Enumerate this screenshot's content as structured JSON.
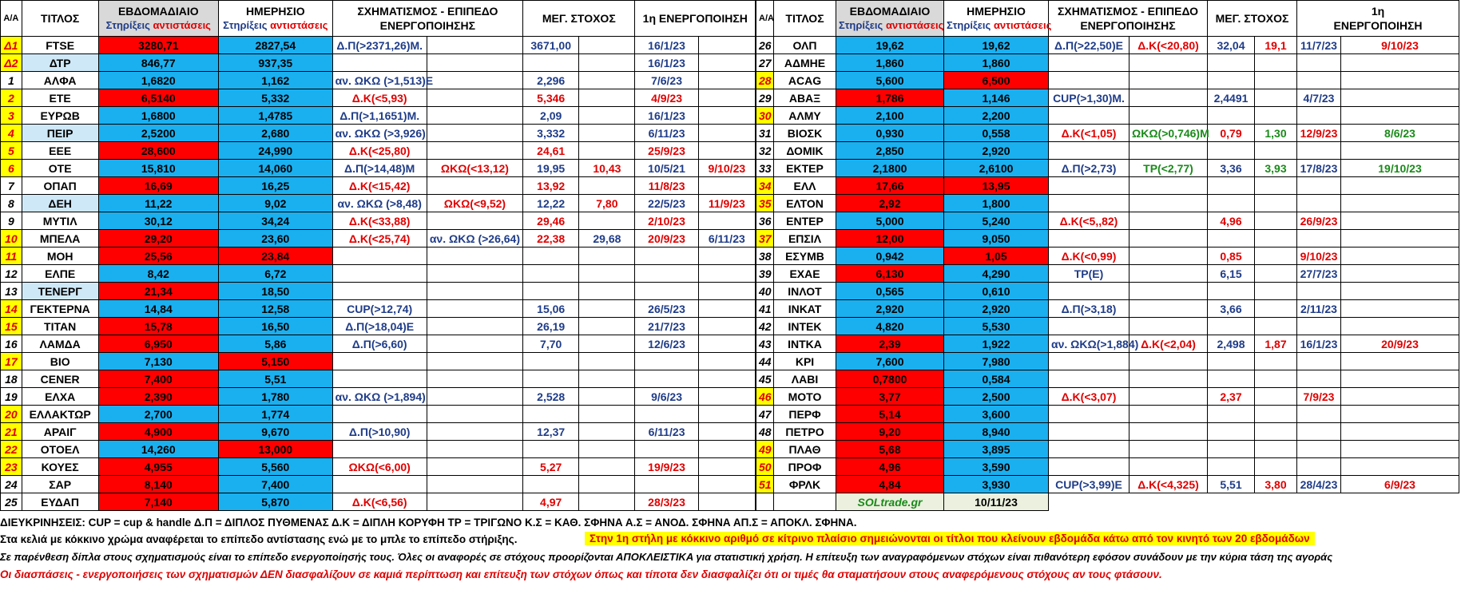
{
  "headers": {
    "aa": "Α/Α",
    "title": "ΤΙΤΛΟΣ",
    "weekly": "ΕΒΔΟΜΑΔΙΑΙΟ",
    "daily": "ΗΜΕΡΗΣΙΟ",
    "supports": "Στηρίξεις",
    "resistances": "αντιστάσεις",
    "pattern_line1": "ΣΧΗΜΑΤΙΣΜΟΣ - ΕΠΙΠΕΔΟ",
    "pattern_line2": "ΕΝΕΡΓΟΠΟΙΗΣΗΣ",
    "target": "ΜΕΓ. ΣΤΟΧΟΣ",
    "first_activation": "1η ΕΝΕΡΓΟΠΟΙΗΣΗ",
    "first_line1": "1η",
    "first_line2": "ΕΝΕΡΓΟΠΟΙΗΣΗ"
  },
  "colors": {
    "red": "#ff0000",
    "blue": "#1ab0f0",
    "yellow": "#ffff00",
    "light_blue": "#cfe8f8",
    "text_red": "#e00000",
    "text_green": "#1a8a1a",
    "text_blue": "#1f3c88"
  },
  "left_rows": [
    {
      "aa": "Δ1",
      "title": "FTSE",
      "weekly": "3280,71",
      "daily": "2827,54",
      "p1": "Δ.Π(>2371,26)Μ.",
      "p2": "",
      "t1": "3671,00",
      "t2": "",
      "d1": "16/1/23",
      "d2": ""
    },
    {
      "aa": "Δ2",
      "title": "ΔΤΡ",
      "weekly": "846,77",
      "daily": "937,35",
      "p1": "",
      "p2": "",
      "t1": "",
      "t2": "",
      "d1": "16/1/23",
      "d2": ""
    },
    {
      "aa": "1",
      "title": "ΑΛΦΑ",
      "weekly": "1,6820",
      "daily": "1,162",
      "p1": "αν. ΩΚΩ (>1,513)Ε",
      "p2": "",
      "t1": "2,296",
      "t2": "",
      "d1": "7/6/23",
      "d2": ""
    },
    {
      "aa": "2",
      "title": "ΕΤΕ",
      "weekly": "6,5140",
      "daily": "5,332",
      "p1": "Δ.Κ(<5,93)",
      "p2": "",
      "t1": "5,346",
      "t2": "",
      "d1": "4/9/23",
      "d2": ""
    },
    {
      "aa": "3",
      "title": "ΕΥΡΩΒ",
      "weekly": "1,6800",
      "daily": "1,4785",
      "p1": "Δ.Π(>1,1651)Μ.",
      "p2": "",
      "t1": "2,09",
      "t2": "",
      "d1": "16/1/23",
      "d2": ""
    },
    {
      "aa": "4",
      "title": "ΠΕΙΡ",
      "weekly": "2,5200",
      "daily": "2,680",
      "p1": "αν. ΩΚΩ (>3,926)",
      "p2": "",
      "t1": "3,332",
      "t2": "",
      "d1": "6/11/23",
      "d2": ""
    },
    {
      "aa": "5",
      "title": "ΕΕΕ",
      "weekly": "28,600",
      "daily": "24,990",
      "p1": "Δ.Κ(<25,80)",
      "p2": "",
      "t1": "24,61",
      "t2": "",
      "d1": "25/9/23",
      "d2": ""
    },
    {
      "aa": "6",
      "title": "ΟΤΕ",
      "weekly": "15,810",
      "daily": "14,060",
      "p1": "Δ.Π(>14,48)Μ",
      "p2": "ΩΚΩ(<13,12)",
      "t1": "19,95",
      "t2": "10,43",
      "d1": "10/5/21",
      "d2": "9/10/23"
    },
    {
      "aa": "7",
      "title": "ΟΠΑΠ",
      "weekly": "16,69",
      "daily": "16,25",
      "p1": "Δ.Κ(<15,42)",
      "p2": "",
      "t1": "13,92",
      "t2": "",
      "d1": "11/8/23",
      "d2": ""
    },
    {
      "aa": "8",
      "title": "ΔΕΗ",
      "weekly": "11,22",
      "daily": "9,02",
      "p1": "αν. ΩΚΩ (>8,48)",
      "p2": "ΩΚΩ(<9,52)",
      "t1": "12,22",
      "t2": "7,80",
      "d1": "22/5/23",
      "d2": "11/9/23"
    },
    {
      "aa": "9",
      "title": "ΜΥΤΙΛ",
      "weekly": "30,12",
      "daily": "34,24",
      "p1": "Δ.Κ(<33,88)",
      "p2": "",
      "t1": "29,46",
      "t2": "",
      "d1": "2/10/23",
      "d2": ""
    },
    {
      "aa": "10",
      "title": "ΜΠΕΛΑ",
      "weekly": "29,20",
      "daily": "23,60",
      "p1": "Δ.Κ(<25,74)",
      "p2": "αν. ΩΚΩ (>26,64)",
      "t1": "22,38",
      "t2": "29,68",
      "d1": "20/9/23",
      "d2": "6/11/23"
    },
    {
      "aa": "11",
      "title": "ΜΟΗ",
      "weekly": "25,56",
      "daily": "23,84",
      "p1": "",
      "p2": "",
      "t1": "",
      "t2": "",
      "d1": "",
      "d2": ""
    },
    {
      "aa": "12",
      "title": "ΕΛΠΕ",
      "weekly": "8,42",
      "daily": "6,72",
      "p1": "",
      "p2": "",
      "t1": "",
      "t2": "",
      "d1": "",
      "d2": ""
    },
    {
      "aa": "13",
      "title": "ΤΕΝΕΡΓ",
      "weekly": "21,34",
      "daily": "18,50",
      "p1": "",
      "p2": "",
      "t1": "",
      "t2": "",
      "d1": "",
      "d2": ""
    },
    {
      "aa": "14",
      "title": "ΓΕΚΤΕΡΝΑ",
      "weekly": "14,84",
      "daily": "12,58",
      "p1": "CUP(>12,74)",
      "p2": "",
      "t1": "15,06",
      "t2": "",
      "d1": "26/5/23",
      "d2": ""
    },
    {
      "aa": "15",
      "title": "ΤΙΤΑΝ",
      "weekly": "15,78",
      "daily": "16,50",
      "p1": "Δ.Π(>18,04)Ε",
      "p2": "",
      "t1": "26,19",
      "t2": "",
      "d1": "21/7/23",
      "d2": ""
    },
    {
      "aa": "16",
      "title": "ΛΑΜΔΑ",
      "weekly": "6,950",
      "daily": "5,86",
      "p1": "Δ.Π(>6,60)",
      "p2": "",
      "t1": "7,70",
      "t2": "",
      "d1": "12/6/23",
      "d2": ""
    },
    {
      "aa": "17",
      "title": "ΒΙΟ",
      "weekly": "7,130",
      "daily": "5,150",
      "p1": "",
      "p2": "",
      "t1": "",
      "t2": "",
      "d1": "",
      "d2": ""
    },
    {
      "aa": "18",
      "title": "CENER",
      "weekly": "7,400",
      "daily": "5,51",
      "p1": "",
      "p2": "",
      "t1": "",
      "t2": "",
      "d1": "",
      "d2": ""
    },
    {
      "aa": "19",
      "title": "ΕΛΧΑ",
      "weekly": "2,390",
      "daily": "1,780",
      "p1": "αν. ΩΚΩ (>1,894)",
      "p2": "",
      "t1": "2,528",
      "t2": "",
      "d1": "9/6/23",
      "d2": ""
    },
    {
      "aa": "20",
      "title": "ΕΛΛΑΚΤΩΡ",
      "weekly": "2,700",
      "daily": "1,774",
      "p1": "",
      "p2": "",
      "t1": "",
      "t2": "",
      "d1": "",
      "d2": ""
    },
    {
      "aa": "21",
      "title": "ΑΡΑΙΓ",
      "weekly": "4,900",
      "daily": "9,670",
      "p1": "Δ.Π(>10,90)",
      "p2": "",
      "t1": "12,37",
      "t2": "",
      "d1": "6/11/23",
      "d2": ""
    },
    {
      "aa": "22",
      "title": "ΟΤΟΕΛ",
      "weekly": "14,260",
      "daily": "13,000",
      "p1": "",
      "p2": "",
      "t1": "",
      "t2": "",
      "d1": "",
      "d2": ""
    },
    {
      "aa": "23",
      "title": "ΚΟΥΕΣ",
      "weekly": "4,955",
      "daily": "5,560",
      "p1": "ΩΚΩ(<6,00)",
      "p2": "",
      "t1": "5,27",
      "t2": "",
      "d1": "19/9/23",
      "d2": ""
    },
    {
      "aa": "24",
      "title": "ΣΑΡ",
      "weekly": "8,140",
      "daily": "7,400",
      "p1": "",
      "p2": "",
      "t1": "",
      "t2": "",
      "d1": "",
      "d2": ""
    },
    {
      "aa": "25",
      "title": "ΕΥΔΑΠ",
      "weekly": "7,140",
      "daily": "5,870",
      "p1": "Δ.Κ(<6,56)",
      "p2": "",
      "t1": "4,97",
      "t2": "",
      "d1": "28/3/23",
      "d2": ""
    }
  ],
  "right_rows": [
    {
      "aa": "26",
      "title": "ΟΛΠ",
      "weekly": "19,62",
      "daily": "19,62",
      "p1": "Δ.Π(>22,50)Ε",
      "p2": "Δ.Κ(<20,80)",
      "t1": "32,04",
      "t2": "19,1",
      "d1": "11/7/23",
      "d2": "9/10/23"
    },
    {
      "aa": "27",
      "title": "ΑΔΜΗΕ",
      "weekly": "1,860",
      "daily": "1,860",
      "p1": "",
      "p2": "",
      "t1": "",
      "t2": "",
      "d1": "",
      "d2": ""
    },
    {
      "aa": "28",
      "title": "ACAG",
      "weekly": "5,600",
      "daily": "6,500",
      "p1": "",
      "p2": "",
      "t1": "",
      "t2": "",
      "d1": "",
      "d2": ""
    },
    {
      "aa": "29",
      "title": "ΑΒΑΞ",
      "weekly": "1,786",
      "daily": "1,146",
      "p1": "CUP(>1,30)Μ.",
      "p2": "",
      "t1": "2,4491",
      "t2": "",
      "d1": "4/7/23",
      "d2": ""
    },
    {
      "aa": "30",
      "title": "ΑΛΜΥ",
      "weekly": "2,100",
      "daily": "2,200",
      "p1": "",
      "p2": "",
      "t1": "",
      "t2": "",
      "d1": "",
      "d2": ""
    },
    {
      "aa": "31",
      "title": "ΒΙΟΣΚ",
      "weekly": "0,930",
      "daily": "0,558",
      "p1": "Δ.Κ(<1,05)",
      "p2": "ΩΚΩ(>0,746)Μ",
      "t1": "0,79",
      "t2": "1,30",
      "d1": "12/9/23",
      "d2": "8/6/23"
    },
    {
      "aa": "32",
      "title": "ΔΟΜΙΚ",
      "weekly": "2,850",
      "daily": "2,920",
      "p1": "",
      "p2": "",
      "t1": "",
      "t2": "",
      "d1": "",
      "d2": ""
    },
    {
      "aa": "33",
      "title": "ΕΚΤΕΡ",
      "weekly": "2,1800",
      "daily": "2,6100",
      "p1": "Δ.Π(>2,73)",
      "p2": "ΤΡ(<2,77)",
      "t1": "3,36",
      "t2": "3,93",
      "d1": "17/8/23",
      "d2": "19/10/23"
    },
    {
      "aa": "34",
      "title": "ΕΛΛ",
      "weekly": "17,66",
      "daily": "13,95",
      "p1": "",
      "p2": "",
      "t1": "",
      "t2": "",
      "d1": "",
      "d2": ""
    },
    {
      "aa": "35",
      "title": "ΕΛΤΟΝ",
      "weekly": "2,92",
      "daily": "1,800",
      "p1": "",
      "p2": "",
      "t1": "",
      "t2": "",
      "d1": "",
      "d2": ""
    },
    {
      "aa": "36",
      "title": "ΕΝΤΕΡ",
      "weekly": "5,000",
      "daily": "5,240",
      "p1": "Δ.Κ(<5,,82)",
      "p2": "",
      "t1": "4,96",
      "t2": "",
      "d1": "26/9/23",
      "d2": ""
    },
    {
      "aa": "37",
      "title": "ΕΠΣΙΛ",
      "weekly": "12,00",
      "daily": "9,050",
      "p1": "",
      "p2": "",
      "t1": "",
      "t2": "",
      "d1": "",
      "d2": ""
    },
    {
      "aa": "38",
      "title": "ΕΣΥΜΒ",
      "weekly": "0,942",
      "daily": "1,05",
      "p1": "Δ.Κ(<0,99)",
      "p2": "",
      "t1": "0,85",
      "t2": "",
      "d1": "9/10/23",
      "d2": ""
    },
    {
      "aa": "39",
      "title": "ΕΧΑΕ",
      "weekly": "6,130",
      "daily": "4,290",
      "p1": "ΤΡ(Ε)",
      "p2": "",
      "t1": "6,15",
      "t2": "",
      "d1": "27/7/23",
      "d2": ""
    },
    {
      "aa": "40",
      "title": "ΙΝΛΟΤ",
      "weekly": "0,565",
      "daily": "0,610",
      "p1": "",
      "p2": "",
      "t1": "",
      "t2": "",
      "d1": "",
      "d2": ""
    },
    {
      "aa": "41",
      "title": "ΙΝΚΑΤ",
      "weekly": "2,920",
      "daily": "2,920",
      "p1": "Δ.Π(>3,18)",
      "p2": "",
      "t1": "3,66",
      "t2": "",
      "d1": "2/11/23",
      "d2": ""
    },
    {
      "aa": "42",
      "title": "ΙΝΤΕΚ",
      "weekly": "4,820",
      "daily": "5,530",
      "p1": "",
      "p2": "",
      "t1": "",
      "t2": "",
      "d1": "",
      "d2": ""
    },
    {
      "aa": "43",
      "title": "ΙΝΤΚΑ",
      "weekly": "2,39",
      "daily": "1,922",
      "p1": "αν. ΩΚΩ(>1,884)",
      "p2": "Δ.Κ(<2,04)",
      "t1": "2,498",
      "t2": "1,87",
      "d1": "16/1/23",
      "d2": "20/9/23"
    },
    {
      "aa": "44",
      "title": "ΚΡΙ",
      "weekly": "7,600",
      "daily": "7,980",
      "p1": "",
      "p2": "",
      "t1": "",
      "t2": "",
      "d1": "",
      "d2": ""
    },
    {
      "aa": "45",
      "title": "ΛΑΒΙ",
      "weekly": "0,7800",
      "daily": "0,584",
      "p1": "",
      "p2": "",
      "t1": "",
      "t2": "",
      "d1": "",
      "d2": ""
    },
    {
      "aa": "46",
      "title": "ΜΟΤΟ",
      "weekly": "3,77",
      "daily": "2,500",
      "p1": "Δ.Κ(<3,07)",
      "p2": "",
      "t1": "2,37",
      "t2": "",
      "d1": "7/9/23",
      "d2": ""
    },
    {
      "aa": "47",
      "title": "ΠΕΡΦ",
      "weekly": "5,14",
      "daily": "3,600",
      "p1": "",
      "p2": "",
      "t1": "",
      "t2": "",
      "d1": "",
      "d2": ""
    },
    {
      "aa": "48",
      "title": "ΠΕΤΡΟ",
      "weekly": "9,20",
      "daily": "8,940",
      "p1": "",
      "p2": "",
      "t1": "",
      "t2": "",
      "d1": "",
      "d2": ""
    },
    {
      "aa": "49",
      "title": "ΠΛΑΘ",
      "weekly": "5,68",
      "daily": "3,895",
      "p1": "",
      "p2": "",
      "t1": "",
      "t2": "",
      "d1": "",
      "d2": ""
    },
    {
      "aa": "50",
      "title": "ΠΡΟΦ",
      "weekly": "4,96",
      "daily": "3,590",
      "p1": "",
      "p2": "",
      "t1": "",
      "t2": "",
      "d1": "",
      "d2": ""
    },
    {
      "aa": "51",
      "title": "ΦΡΛΚ",
      "weekly": "4,84",
      "daily": "3,930",
      "p1": "CUP(>3,99)Ε",
      "p2": "Δ.Κ(<4,325)",
      "t1": "5,51",
      "t2": "3,80",
      "d1": "28/4/23",
      "d2": "6/9/23"
    }
  ],
  "footer": {
    "brand": "SOLtrade.gr",
    "date": "10/11/23"
  },
  "notes": {
    "abbreviations": "ΔΙΕΥΚΡΙΝΗΣΕΙΣ: CUP = cup & handle   Δ.Π = ΔΙΠΛΟΣ ΠΥΘΜΕΝΑΣ  Δ.Κ = ΔΙΠΛΗ ΚΟΡΥΦΗ ΤΡ = ΤΡΙΓΩΝΟ  Κ.Σ = ΚΑΘ. ΣΦΗΝΑ  Α.Σ = ΑΝΟΔ. ΣΦΗΝΑ  ΑΠ.Σ = ΑΠΟΚΛ. ΣΦΗΝΑ.",
    "colors_note": "Στα κελιά με κόκκινο χρώμα αναφέρεται το επίπεδο αντίστασης ενώ με το μπλε το επίπεδο στήριξης.",
    "yellow_note": "Στην 1η στήλη με κόκκινο αριθμό σε κίτρινο πλαίσιο σημειώνονται οι τίτλοι που κλείνουν εβδομάδα κάτω από τον κινητό των 20 εβδομάδων",
    "activation_note": "Σε παρένθεση δίπλα στους σχηματισμούς είναι το επίπεδο ενεργοποίησής τους. Όλες οι αναφορές σε στόχους προορίζονται ΑΠΟΚΛΕΙΣΤΙΚΑ για  στατιστική χρήση.  Η επίτευξη των αναγραφόμενων στόχων είναι πιθανότερη εφόσον συνάδουν με την κύρια τάση της αγοράς",
    "disclaimer": "Οι διασπάσεις - ενεργοποιήσεις των σχηματισμών  ΔΕΝ διασφαλίζουν σε καμιά περίπτωση και επίτευξη των στόχων όπως και τίποτα δεν διασφαλίζει ότι οι τιμές θα σταματήσουν στους αναφερόμενους στόχους αν τους φτάσουν."
  }
}
